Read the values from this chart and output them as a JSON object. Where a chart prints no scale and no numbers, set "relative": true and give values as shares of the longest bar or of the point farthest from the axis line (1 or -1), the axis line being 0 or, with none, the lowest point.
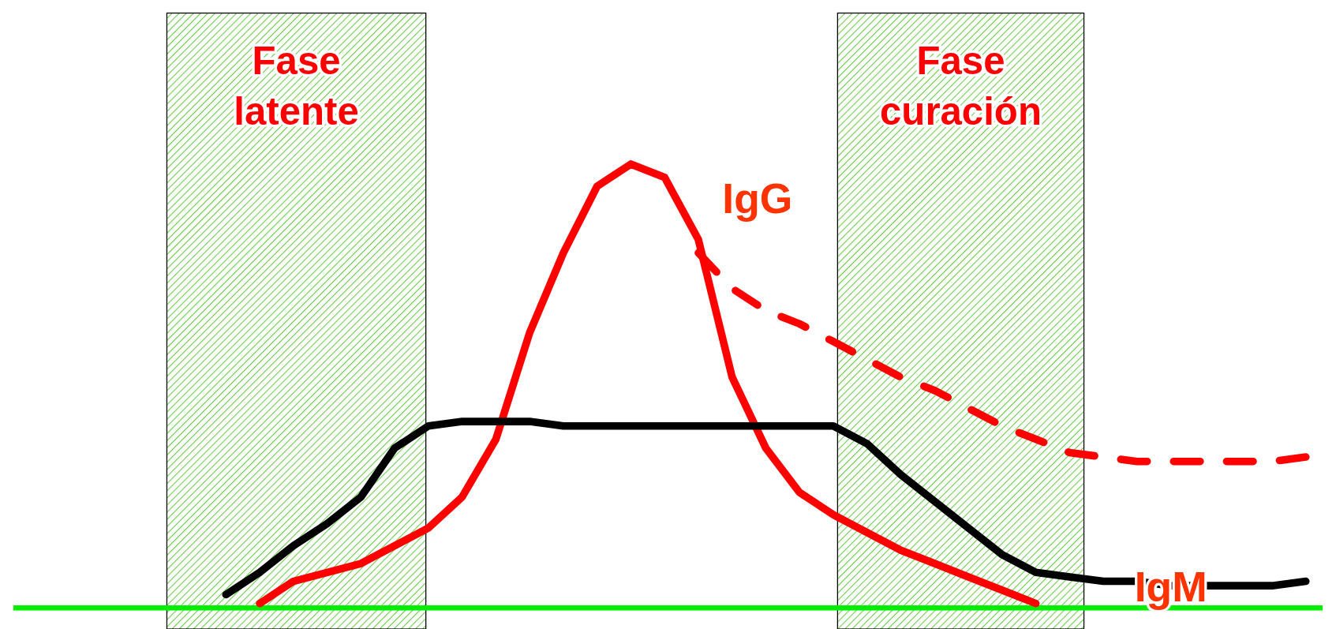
{
  "chart_data": {
    "type": "line",
    "relative": true,
    "marker": "none",
    "line_style": "solid",
    "categories": [
      null,
      null,
      null,
      null,
      null,
      null,
      null,
      null,
      null,
      null,
      null,
      null,
      null,
      null,
      null,
      null,
      null,
      null,
      null,
      null,
      null,
      null,
      null,
      null,
      null,
      null,
      null,
      null,
      null,
      null,
      null,
      null,
      null
    ],
    "annotations": [
      "Fase latente",
      "Fase curación"
    ],
    "series": [
      {
        "name": "IgG",
        "color": "#ff0000",
        "values": [
          null,
          0.01,
          0.06,
          0.08,
          0.1,
          0.14,
          0.18,
          0.25,
          0.38,
          0.62,
          0.8,
          0.95,
          1,
          0.97,
          0.83,
          0.52,
          0.36,
          0.26,
          0.21,
          0.17,
          0.13,
          0.1,
          0.07,
          0.04,
          0.01,
          null,
          null,
          null,
          null,
          null,
          null,
          null,
          null
        ]
      },
      {
        "color": "#ff0000",
        "line_style": "dashed",
        "values": [
          null,
          null,
          null,
          null,
          null,
          null,
          null,
          null,
          null,
          null,
          null,
          null,
          null,
          null,
          0.8,
          0.72,
          0.67,
          0.64,
          0.6,
          0.56,
          0.52,
          0.49,
          0.45,
          0.41,
          0.38,
          0.35,
          0.34,
          0.33,
          0.33,
          0.33,
          0.33,
          0.33,
          0.34
        ]
      },
      {
        "name": "IgM",
        "color": "#000000",
        "values": [
          0.03,
          0.08,
          0.14,
          0.19,
          0.25,
          0.36,
          0.41,
          0.42,
          0.42,
          0.42,
          0.41,
          0.41,
          0.41,
          0.41,
          0.41,
          0.41,
          0.41,
          0.41,
          0.41,
          0.37,
          0.3,
          0.24,
          0.18,
          0.12,
          0.08,
          0.07,
          0.06,
          0.06,
          0.05,
          0.05,
          0.05,
          0.05,
          0.06
        ]
      }
    ]
  }
}
